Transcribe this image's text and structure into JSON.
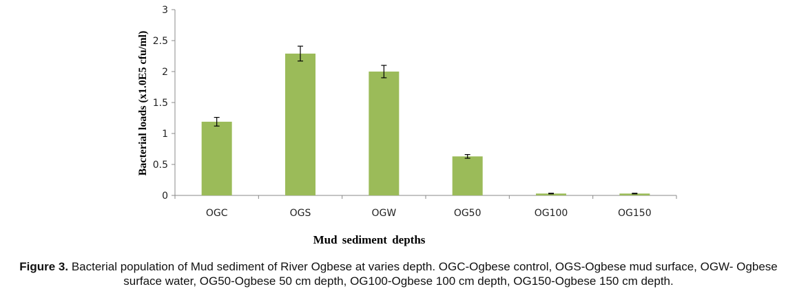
{
  "chart_data": {
    "type": "bar",
    "title": "",
    "xlabel": "Mud sediment depths",
    "ylabel": "Bacterial loads (x1.0E5 cfu/ml)",
    "categories": [
      "OGC",
      "OGS",
      "OGW",
      "OG50",
      "OG100",
      "OG150"
    ],
    "values": [
      1.19,
      2.29,
      2.0,
      0.63,
      0.03,
      0.03
    ],
    "errors": [
      0.07,
      0.12,
      0.1,
      0.03,
      0.005,
      0.005
    ],
    "ylim": [
      0,
      3
    ],
    "yticks": [
      "0",
      "0.5",
      "1",
      "1.5",
      "2",
      "2.5",
      "3"
    ],
    "grid": false,
    "bar_color": "#9bbb59"
  },
  "caption": {
    "label": "Figure 3.",
    "text": " Bacterial population of Mud sediment of River Ogbese at varies depth. OGC-Ogbese control, OGS-Ogbese mud surface, OGW- Ogbese surface water, OG50-Ogbese 50 cm depth, OG100-Ogbese 100 cm depth, OG150-Ogbese 150 cm depth."
  }
}
